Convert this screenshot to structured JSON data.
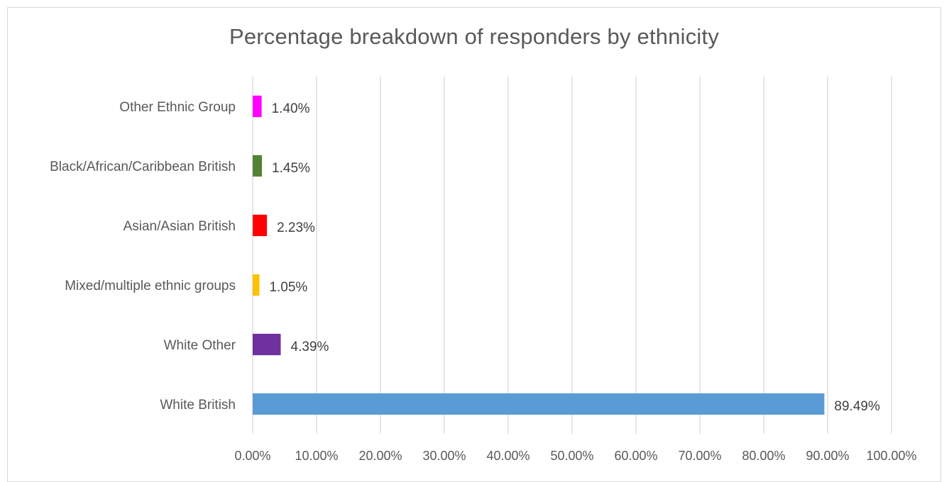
{
  "chart_data": {
    "type": "bar",
    "orientation": "horizontal",
    "title": "Percentage breakdown of responders by ethnicity",
    "categories": [
      "White British",
      "White Other",
      "Mixed/multiple ethnic groups",
      "Asian/Asian British",
      "Black/African/Caribbean British",
      "Other Ethnic Group"
    ],
    "values": [
      89.49,
      4.39,
      1.05,
      2.23,
      1.45,
      1.4
    ],
    "data_labels": [
      "89.49%",
      "4.39%",
      "1.05%",
      "2.23%",
      "1.45%",
      "1.40%"
    ],
    "colors": [
      "#5b9bd5",
      "#7030a0",
      "#ffc000",
      "#ff0000",
      "#548235",
      "#ff00ff"
    ],
    "xlim": [
      0,
      100
    ],
    "x_ticks": [
      "0.00%",
      "10.00%",
      "20.00%",
      "30.00%",
      "40.00%",
      "50.00%",
      "60.00%",
      "70.00%",
      "80.00%",
      "90.00%",
      "100.00%"
    ],
    "grid": "vertical",
    "legend": "none"
  }
}
